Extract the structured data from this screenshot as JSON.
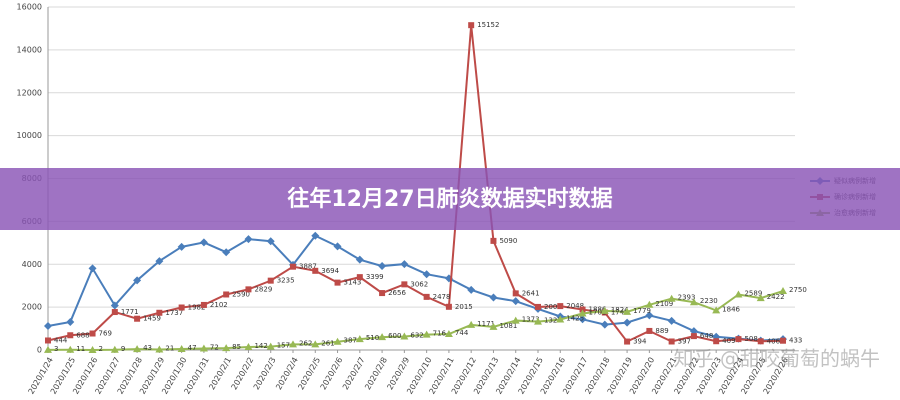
{
  "chart_data": {
    "type": "line",
    "title": "往年12月27日肺炎数据实时数据",
    "watermark": "知乎 @甜咬葡萄的蜗牛",
    "categories": [
      "2020/1/24",
      "2020/1/25",
      "2020/1/26",
      "2020/1/27",
      "2020/1/28",
      "2020/1/29",
      "2020/1/30",
      "2020/1/31",
      "2020/2/1",
      "2020/2/2",
      "2020/2/3",
      "2020/2/4",
      "2020/2/5",
      "2020/2/6",
      "2020/2/7",
      "2020/2/8",
      "2020/2/9",
      "2020/2/10",
      "2020/2/11",
      "2020/2/12",
      "2020/2/13",
      "2020/2/14",
      "2020/2/15",
      "2020/2/16",
      "2020/2/17",
      "2020/2/18",
      "2020/2/19",
      "2020/2/20",
      "2020/2/21",
      "2020/2/22",
      "2020/2/23",
      "2020/2/24",
      "2020/2/25",
      "2020/2/26"
    ],
    "series": [
      {
        "name": "疑似病例新增",
        "color": "#4a7ebb",
        "marker": "diamond",
        "labels": false,
        "values": [
          1118,
          1309,
          3806,
          2077,
          3248,
          4148,
          4812,
          5019,
          4562,
          5173,
          5072,
          3971,
          5328,
          4833,
          4214,
          3916,
          4008,
          3536,
          3342,
          2807,
          2450,
          2277,
          1918,
          1563,
          1432,
          1185,
          1277,
          1614,
          1361,
          882,
          620,
          530,
          439,
          508
        ]
      },
      {
        "name": "确诊病例新增",
        "color": "#be4b48",
        "marker": "square",
        "labels": true,
        "values": [
          444,
          688,
          769,
          1771,
          1459,
          1737,
          1982,
          2102,
          2590,
          2829,
          3235,
          3887,
          3694,
          3143,
          3399,
          2656,
          3062,
          2478,
          2015,
          15152,
          5090,
          2641,
          2009,
          2048,
          1886,
          1749,
          394,
          889,
          397,
          648,
          409,
          508,
          406,
          433
        ]
      },
      {
        "name": "治愈病例新增",
        "color": "#98b954",
        "marker": "triangle",
        "labels": true,
        "values": [
          3,
          11,
          2,
          9,
          43,
          21,
          47,
          72,
          85,
          142,
          157,
          262,
          261,
          387,
          510,
          600,
          632,
          716,
          744,
          1171,
          1081,
          1373,
          1323,
          1425,
          1701,
          1824,
          1779,
          2109,
          2393,
          2230,
          1846,
          2589,
          2422,
          2750
        ]
      }
    ],
    "ylim": [
      0,
      16000
    ],
    "yticks": [
      0,
      2000,
      4000,
      6000,
      8000,
      10000,
      12000,
      14000,
      16000
    ],
    "grid": true,
    "legend": "right"
  }
}
